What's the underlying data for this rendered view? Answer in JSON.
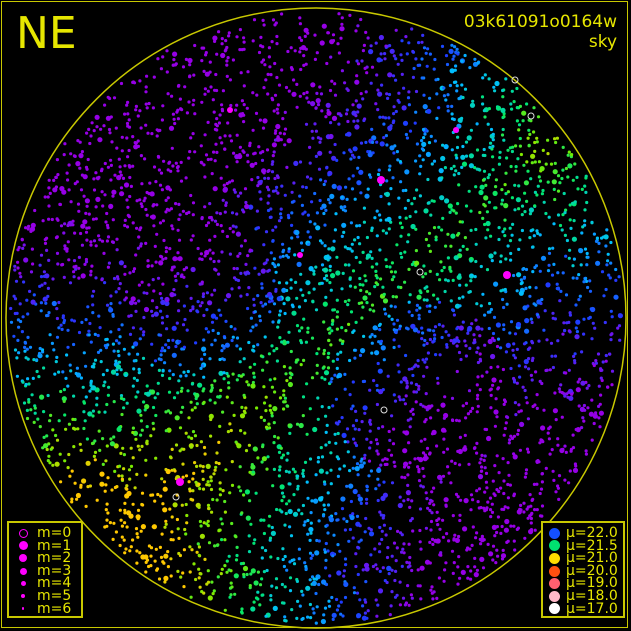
{
  "direction_label": "NE",
  "frame_id": "03k61091o0164w",
  "frame_type": "sky",
  "colors": {
    "frame": "#c8c800",
    "text": "#e6e600",
    "magnitude_marker": "#ff00ff"
  },
  "magnitude_legend": [
    {
      "label": "m=0",
      "style": "ring"
    },
    {
      "label": "m=1"
    },
    {
      "label": "m=2"
    },
    {
      "label": "m=3"
    },
    {
      "label": "m=4"
    },
    {
      "label": "m=5"
    },
    {
      "label": "m=6"
    }
  ],
  "brightness_legend": [
    {
      "label": "μ=22.0",
      "color": "#1450ff"
    },
    {
      "label": "μ=21.5",
      "color": "#00e070"
    },
    {
      "label": "μ=21.0",
      "color": "#ffdc00"
    },
    {
      "label": "μ=20.0",
      "color": "#ff5010"
    },
    {
      "label": "μ=19.0",
      "color": "#ff6070"
    },
    {
      "label": "μ=18.0",
      "color": "#ffb8c8"
    },
    {
      "label": "μ=17.0",
      "color": "#ffffff"
    }
  ]
}
